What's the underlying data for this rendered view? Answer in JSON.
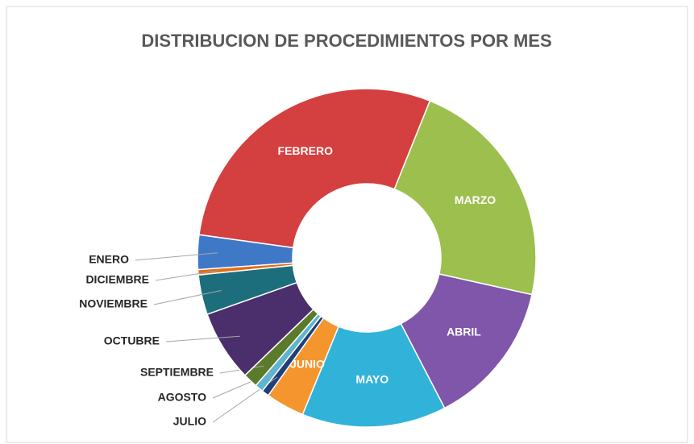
{
  "chart_data": {
    "type": "donut",
    "title": "DISTRIBUCION DE PROCEDIMIENTOS POR MES",
    "categories": [
      "ENERO",
      "FEBRERO",
      "MARZO",
      "ABRIL",
      "MAYO",
      "JUNIO",
      "JULIO",
      "AGOSTO",
      "SEPTIEMBRE",
      "OCTUBRE",
      "NOVIEMBRE",
      "DICIEMBRE"
    ],
    "values": [
      3.3,
      28.9,
      22.4,
      13.9,
      13.8,
      3.7,
      0.7,
      0.8,
      1.4,
      6.8,
      3.8,
      0.5
    ],
    "colors": [
      "#4078c8",
      "#d43f3f",
      "#9cbf4e",
      "#7f56aa",
      "#31b3d9",
      "#f4952e",
      "#213f78",
      "#5fb4cf",
      "#5b7a2c",
      "#4a2f6c",
      "#1d6e7c",
      "#e36c14"
    ]
  }
}
